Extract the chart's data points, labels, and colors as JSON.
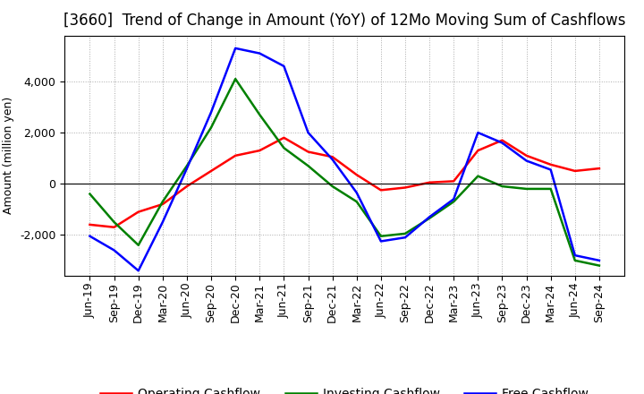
{
  "title": "[3660]  Trend of Change in Amount (YoY) of 12Mo Moving Sum of Cashflows",
  "xlabel": "",
  "ylabel": "Amount (million yen)",
  "x_labels": [
    "Jun-19",
    "Sep-19",
    "Dec-19",
    "Mar-20",
    "Jun-20",
    "Sep-20",
    "Dec-20",
    "Mar-21",
    "Jun-21",
    "Sep-21",
    "Dec-21",
    "Mar-22",
    "Jun-22",
    "Sep-22",
    "Dec-22",
    "Mar-23",
    "Jun-23",
    "Sep-23",
    "Dec-23",
    "Mar-24",
    "Jun-24",
    "Sep-24"
  ],
  "operating_cashflow": [
    -1600,
    -1700,
    -1100,
    -800,
    -100,
    500,
    1100,
    1300,
    1800,
    1250,
    1050,
    350,
    -250,
    -150,
    50,
    100,
    1300,
    1700,
    1100,
    750,
    500,
    600
  ],
  "investing_cashflow": [
    -400,
    -1500,
    -2400,
    -700,
    700,
    2200,
    4100,
    2700,
    1400,
    700,
    -100,
    -700,
    -2050,
    -1950,
    -1350,
    -700,
    300,
    -100,
    -200,
    -200,
    -3000,
    -3200
  ],
  "free_cashflow": [
    -2050,
    -2600,
    -3400,
    -1500,
    600,
    2800,
    5300,
    5100,
    4600,
    2000,
    950,
    -350,
    -2250,
    -2100,
    -1300,
    -600,
    2000,
    1600,
    900,
    550,
    -2800,
    -3000
  ],
  "operating_color": "#ff0000",
  "investing_color": "#008000",
  "free_color": "#0000ff",
  "ylim": [
    -3600,
    5800
  ],
  "yticks": [
    -2000,
    0,
    2000,
    4000
  ],
  "background_color": "#ffffff",
  "grid_color": "#aaaaaa",
  "title_fontsize": 12,
  "legend_fontsize": 10,
  "axis_label_fontsize": 9,
  "tick_fontsize": 9
}
